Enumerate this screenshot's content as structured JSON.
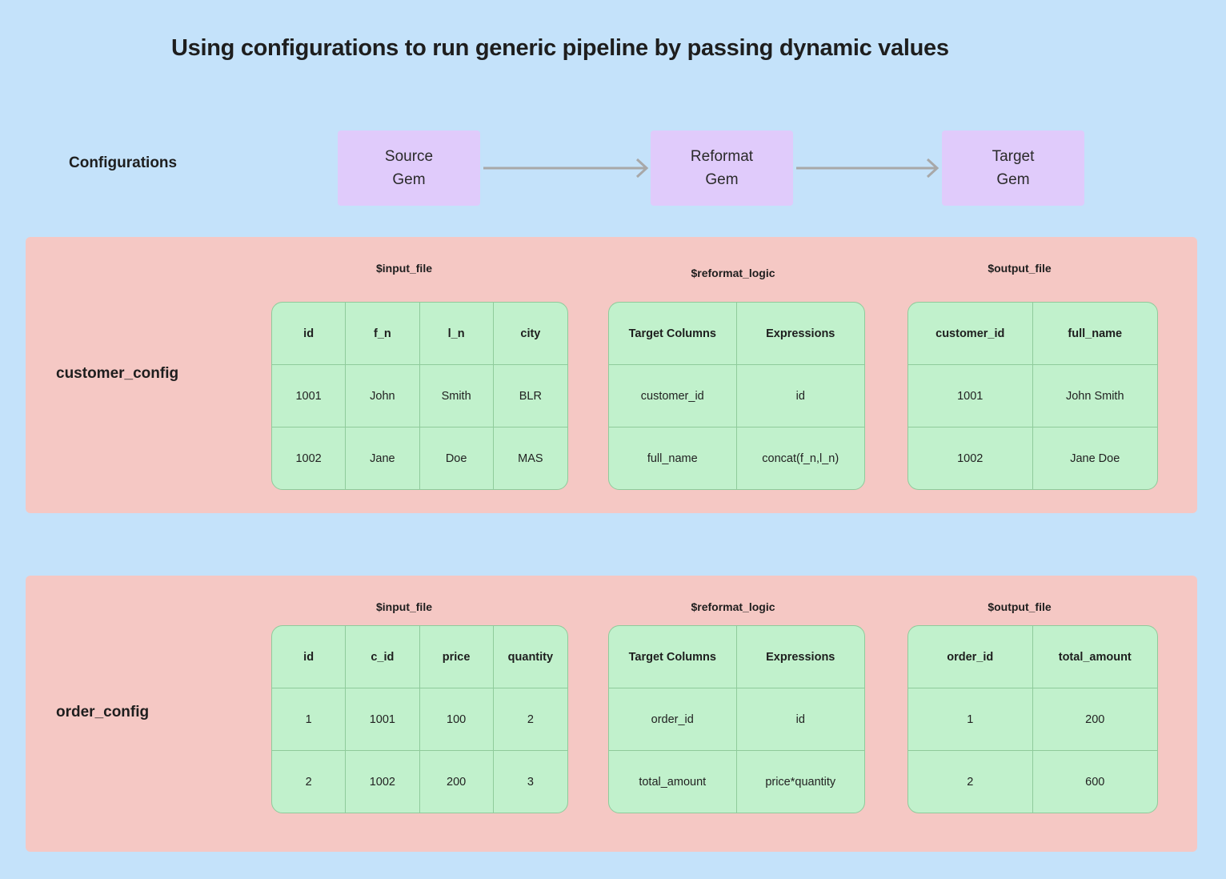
{
  "title": "Using configurations to run generic pipeline by passing dynamic values",
  "configurations_label": "Configurations",
  "gems": [
    {
      "line1": "Source",
      "line2": "Gem"
    },
    {
      "line1": "Reformat",
      "line2": "Gem"
    },
    {
      "line1": "Target",
      "line2": "Gem"
    }
  ],
  "configs": [
    {
      "name": "customer_config",
      "input_label": "$input_file",
      "reformat_label": "$reformat_logic",
      "output_label": "$output_file",
      "input": {
        "headers": [
          "id",
          "f_n",
          "l_n",
          "city"
        ],
        "rows": [
          [
            "1001",
            "John",
            "Smith",
            "BLR"
          ],
          [
            "1002",
            "Jane",
            "Doe",
            "MAS"
          ]
        ]
      },
      "reformat": {
        "headers": [
          "Target Columns",
          "Expressions"
        ],
        "rows": [
          [
            "customer_id",
            "id"
          ],
          [
            "full_name",
            "concat(f_n,l_n)"
          ]
        ]
      },
      "output": {
        "headers": [
          "customer_id",
          "full_name"
        ],
        "rows": [
          [
            "1001",
            "John Smith"
          ],
          [
            "1002",
            "Jane Doe"
          ]
        ]
      }
    },
    {
      "name": "order_config",
      "input_label": "$input_file",
      "reformat_label": "$reformat_logic",
      "output_label": "$output_file",
      "input": {
        "headers": [
          "id",
          "c_id",
          "price",
          "quantity"
        ],
        "rows": [
          [
            "1",
            "1001",
            "100",
            "2"
          ],
          [
            "2",
            "1002",
            "200",
            "3"
          ]
        ]
      },
      "reformat": {
        "headers": [
          "Target Columns",
          "Expressions"
        ],
        "rows": [
          [
            "order_id",
            "id"
          ],
          [
            "total_amount",
            "price*quantity"
          ]
        ]
      },
      "output": {
        "headers": [
          "order_id",
          "total_amount"
        ],
        "rows": [
          [
            "1",
            "200"
          ],
          [
            "2",
            "600"
          ]
        ]
      }
    }
  ]
}
